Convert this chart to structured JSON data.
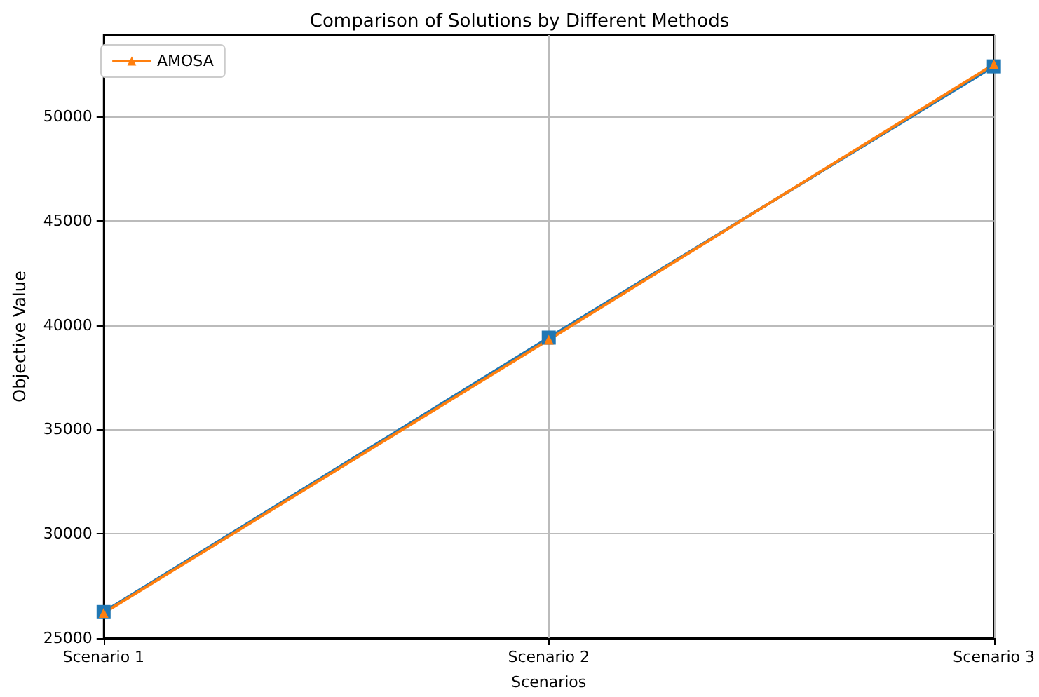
{
  "chart_data": {
    "type": "line",
    "title": "Comparison of Solutions by Different Methods",
    "xlabel": "Scenarios",
    "ylabel": "Objective Value",
    "categories": [
      "Scenario 1",
      "Scenario 2",
      "Scenario 3"
    ],
    "series": [
      {
        "color": "#1f77b4",
        "marker": "square",
        "values": [
          26250,
          39400,
          52400
        ]
      },
      {
        "name": "AMOSA",
        "color": "#ff7f0e",
        "marker": "triangle",
        "values": [
          26200,
          39300,
          52500
        ]
      }
    ],
    "ylim": [
      25000,
      53900
    ],
    "yticks": [
      25000,
      30000,
      35000,
      40000,
      45000,
      50000
    ],
    "grid": true,
    "legend": "top left",
    "line_style": "solid"
  }
}
